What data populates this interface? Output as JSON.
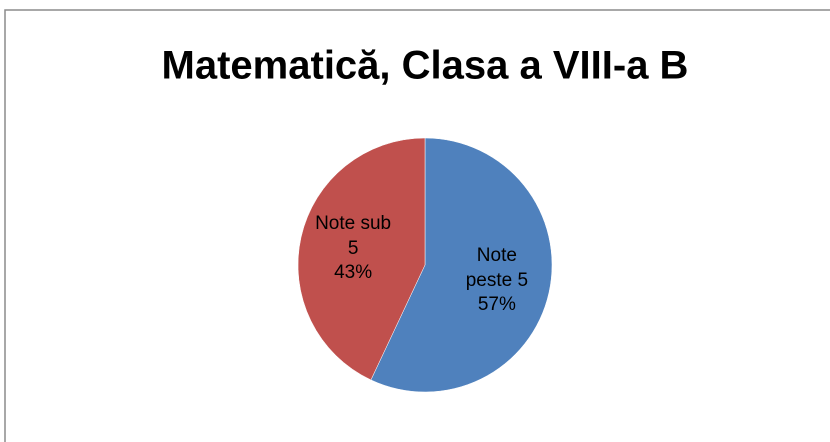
{
  "chart_data": {
    "type": "pie",
    "title": "Matematică, Clasa a VIII-a B",
    "categories": [
      "Note peste 5",
      "Note sub 5"
    ],
    "values": [
      57,
      43
    ],
    "value_labels": [
      "57%",
      "43%"
    ],
    "colors": [
      "#4f81bd",
      "#c0504d"
    ]
  }
}
